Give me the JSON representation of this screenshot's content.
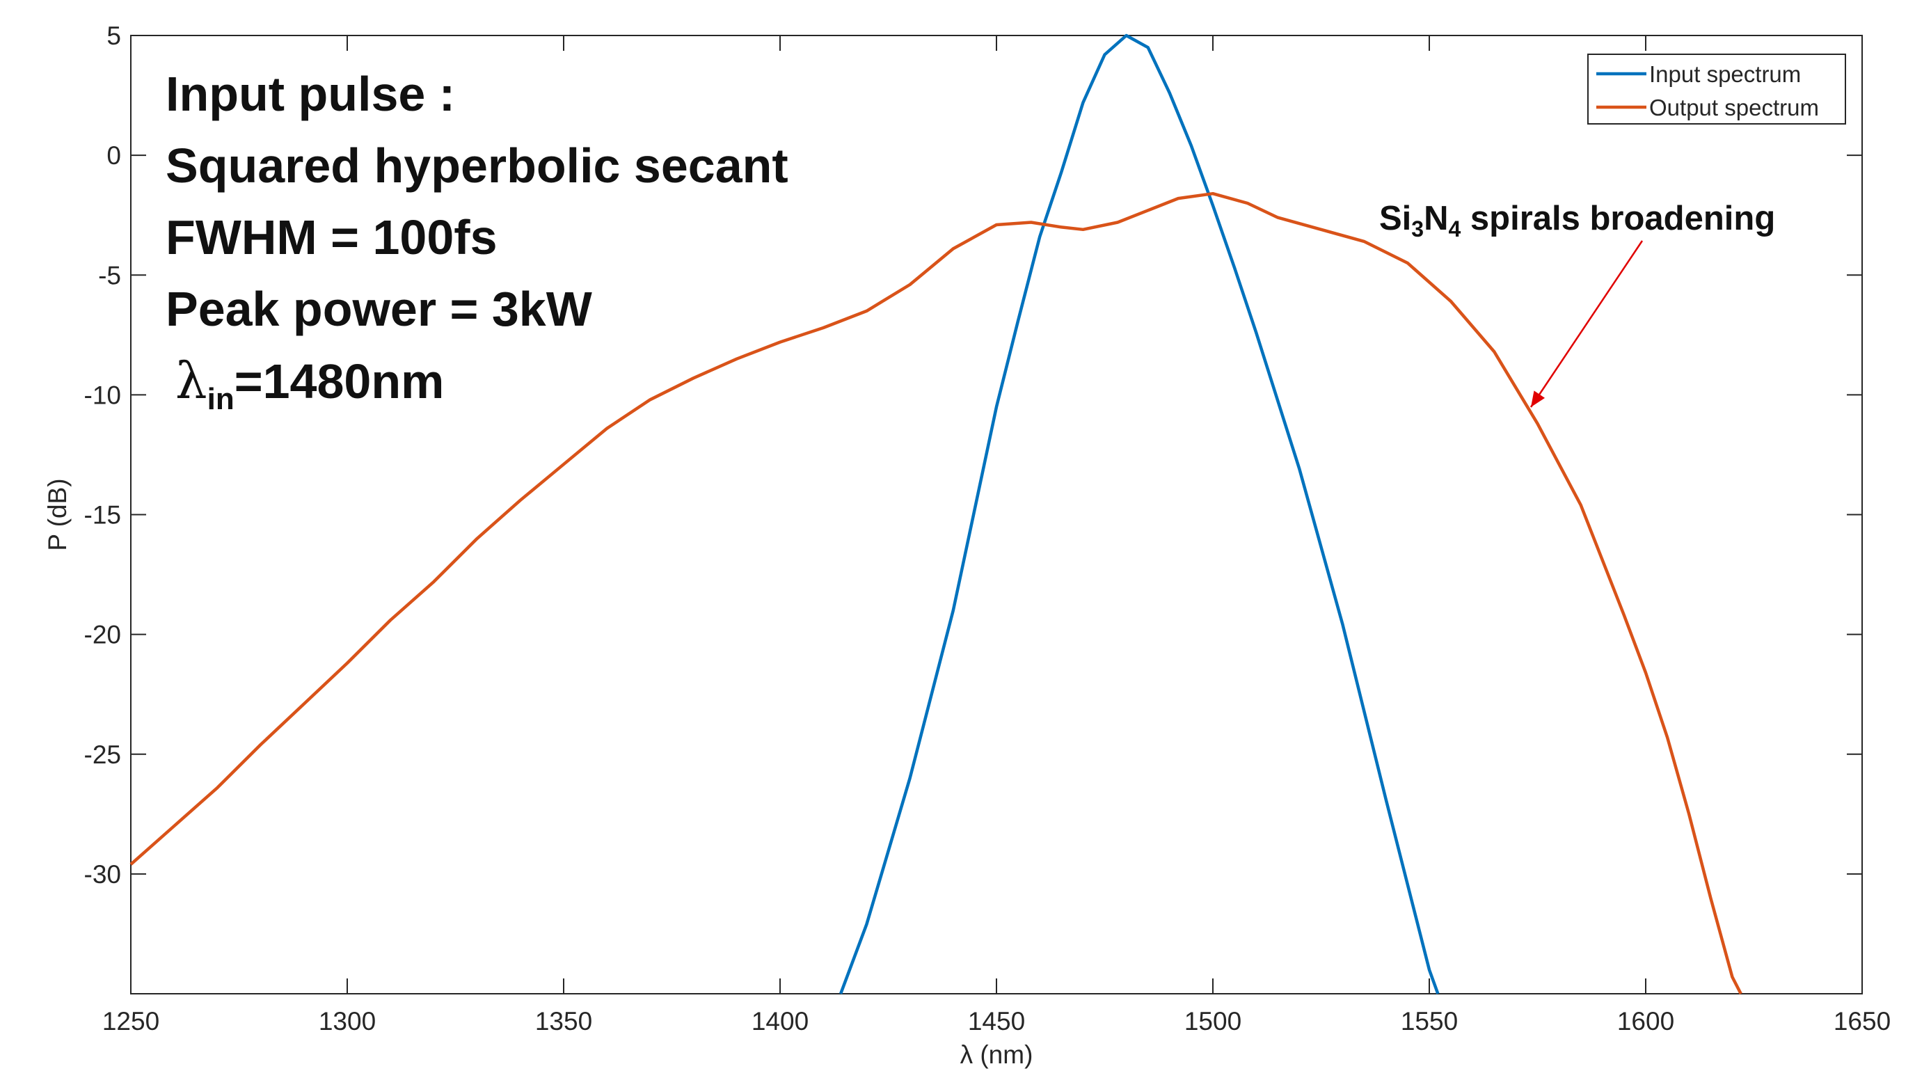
{
  "annotations": {
    "lines": [
      "Input pulse :",
      "Squared hyperbolic secant",
      "FWHM = 100fs",
      "Peak power = 3kW"
    ],
    "lambda": {
      "symbol": "λ",
      "subscript": "in",
      "rest": "=1480nm"
    },
    "arrow_label": {
      "p1": "Si",
      "s1": "3",
      "p2": "N",
      "s2": "4",
      "p3": " spirals broadening"
    },
    "arrow_color": "#e00000"
  },
  "chart_data": {
    "type": "line",
    "xlabel": "λ (nm)",
    "ylabel": "P (dB)",
    "xlim": [
      1250,
      1650
    ],
    "ylim": [
      -35,
      5
    ],
    "xticks": [
      1250,
      1300,
      1350,
      1400,
      1450,
      1500,
      1550,
      1600,
      1650
    ],
    "yticks": [
      5,
      0,
      -5,
      -10,
      -15,
      -20,
      -25,
      -30
    ],
    "grid": false,
    "legend_position": "top-right",
    "series": [
      {
        "name": "Input spectrum",
        "color": "#0072bd",
        "x": [
          1414,
          1420,
          1430,
          1440,
          1450,
          1455,
          1460,
          1465,
          1470,
          1475,
          1480,
          1485,
          1490,
          1495,
          1500,
          1505,
          1510,
          1520,
          1530,
          1540,
          1550,
          1552
        ],
        "y": [
          -35,
          -32.1,
          -26.0,
          -19.0,
          -10.5,
          -6.9,
          -3.4,
          -0.7,
          2.2,
          4.2,
          5.0,
          4.5,
          2.6,
          0.4,
          -2.1,
          -4.7,
          -7.4,
          -13.1,
          -19.6,
          -26.9,
          -34.0,
          -35
        ]
      },
      {
        "name": "Output spectrum",
        "color": "#d95319",
        "x": [
          1250,
          1260,
          1270,
          1280,
          1290,
          1300,
          1310,
          1320,
          1330,
          1340,
          1350,
          1360,
          1370,
          1380,
          1390,
          1400,
          1410,
          1420,
          1430,
          1440,
          1450,
          1458,
          1465,
          1470,
          1478,
          1485,
          1492,
          1500,
          1508,
          1515,
          1525,
          1535,
          1545,
          1555,
          1565,
          1575,
          1585,
          1595,
          1600,
          1605,
          1610,
          1615,
          1620,
          1622
        ],
        "y": [
          -29.6,
          -28.0,
          -26.4,
          -24.6,
          -22.9,
          -21.2,
          -19.4,
          -17.8,
          -16.0,
          -14.4,
          -12.9,
          -11.4,
          -10.2,
          -9.3,
          -8.5,
          -7.8,
          -7.2,
          -6.5,
          -5.4,
          -3.9,
          -2.9,
          -2.8,
          -3.0,
          -3.1,
          -2.8,
          -2.3,
          -1.8,
          -1.6,
          -2.0,
          -2.6,
          -3.1,
          -3.6,
          -4.5,
          -6.1,
          -8.2,
          -11.2,
          -14.6,
          -19.2,
          -21.6,
          -24.3,
          -27.5,
          -31.0,
          -34.3,
          -35
        ]
      }
    ]
  }
}
